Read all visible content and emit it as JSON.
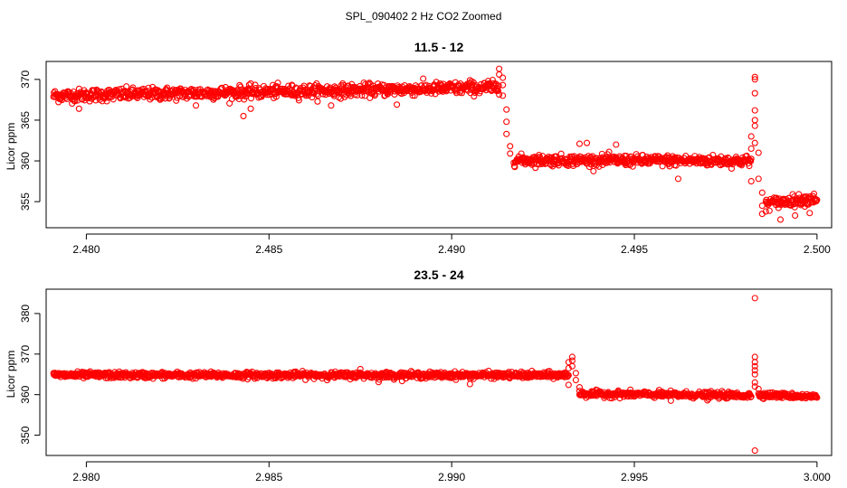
{
  "figure_title": "SPL_090402  2 Hz CO2 Zoomed",
  "colors": {
    "points": "#ff0000",
    "axes": "#000000"
  },
  "chart_data": [
    {
      "type": "scatter",
      "title": "11.5 - 12",
      "xlabel": "",
      "ylabel": "Licor ppm",
      "xlim": [
        2.4789,
        2.5004
      ],
      "ylim": [
        351.8,
        372.2
      ],
      "xticks": [
        2.48,
        2.485,
        2.49,
        2.495,
        2.5
      ],
      "xtick_labels": [
        "2.480",
        "2.485",
        "2.490",
        "2.495",
        "2.500"
      ],
      "yticks": [
        355,
        360,
        365,
        370
      ],
      "ytick_labels": [
        "355",
        "360",
        "365",
        "370"
      ],
      "grid": false,
      "series": [
        {
          "marker": "open-circle",
          "color": "#ff0000",
          "segments": [
            {
              "x_start": 2.4791,
              "x_end": 2.4913,
              "y_start": 368.0,
              "y_end": 369.0,
              "spread": 0.7
            },
            {
              "x_start": 2.4917,
              "x_end": 2.4982,
              "y_start": 360.1,
              "y_end": 360.0,
              "spread": 0.6
            },
            {
              "x_start": 2.4986,
              "x_end": 2.5,
              "y_start": 354.8,
              "y_end": 355.4,
              "spread": 0.6
            }
          ],
          "points": [
            [
              2.4913,
              370.6
            ],
            [
              2.4913,
              371.3
            ],
            [
              2.4914,
              370.2
            ],
            [
              2.4914,
              369.3
            ],
            [
              2.4914,
              368.0
            ],
            [
              2.4915,
              366.3
            ],
            [
              2.4915,
              364.8
            ],
            [
              2.4915,
              363.3
            ],
            [
              2.4916,
              361.8
            ],
            [
              2.4916,
              360.9
            ],
            [
              2.4843,
              365.5
            ],
            [
              2.4845,
              366.4
            ],
            [
              2.4798,
              366.4
            ],
            [
              2.483,
              366.8
            ],
            [
              2.4867,
              366.8
            ],
            [
              2.4885,
              366.9
            ],
            [
              2.491,
              369.8
            ],
            [
              2.4905,
              369.9
            ],
            [
              2.4935,
              362.1
            ],
            [
              2.4937,
              362.2
            ],
            [
              2.4945,
              362.0
            ],
            [
              2.4962,
              357.8
            ],
            [
              2.4982,
              361.5
            ],
            [
              2.4982,
              363.0
            ],
            [
              2.4983,
              364.3
            ],
            [
              2.4983,
              365.0
            ],
            [
              2.4983,
              366.2
            ],
            [
              2.4983,
              368.3
            ],
            [
              2.4983,
              370.0
            ],
            [
              2.4983,
              370.3
            ],
            [
              2.4983,
              362.2
            ],
            [
              2.4984,
              361.0
            ],
            [
              2.4982,
              357.5
            ],
            [
              2.4984,
              357.8
            ],
            [
              2.4985,
              356.1
            ],
            [
              2.4985,
              354.5
            ],
            [
              2.4985,
              353.5
            ],
            [
              2.4986,
              353.8
            ],
            [
              2.499,
              352.8
            ],
            [
              2.4994,
              353.3
            ],
            [
              2.4998,
              353.6
            ]
          ]
        }
      ]
    },
    {
      "type": "scatter",
      "title": "23.5 - 24",
      "xlabel": "",
      "ylabel": "Licor ppm",
      "xlim": [
        2.9789,
        3.0004
      ],
      "ylim": [
        345.0,
        386.0
      ],
      "xticks": [
        2.98,
        2.985,
        2.99,
        2.995,
        3.0
      ],
      "xtick_labels": [
        "2.980",
        "2.985",
        "2.990",
        "2.995",
        "3.000"
      ],
      "yticks": [
        350,
        360,
        370,
        380
      ],
      "ytick_labels": [
        "350",
        "360",
        "370",
        "380"
      ],
      "grid": false,
      "series": [
        {
          "marker": "open-circle",
          "color": "#ff0000",
          "segments": [
            {
              "x_start": 2.9791,
              "x_end": 2.9932,
              "y_start": 364.8,
              "y_end": 364.8,
              "spread": 0.7
            },
            {
              "x_start": 2.9935,
              "x_end": 2.9982,
              "y_start": 360.2,
              "y_end": 359.8,
              "spread": 0.7
            },
            {
              "x_start": 2.9984,
              "x_end": 3.0,
              "y_start": 360.0,
              "y_end": 359.5,
              "spread": 0.6
            }
          ],
          "points": [
            [
              2.9932,
              366.5
            ],
            [
              2.9932,
              368.0
            ],
            [
              2.9933,
              369.3
            ],
            [
              2.9933,
              368.4
            ],
            [
              2.9933,
              367.0
            ],
            [
              2.9934,
              365.3
            ],
            [
              2.9934,
              363.6
            ],
            [
              2.9935,
              361.8
            ],
            [
              2.9935,
              360.9
            ],
            [
              2.9932,
              362.4
            ],
            [
              2.9983,
              383.8
            ],
            [
              2.9983,
              346.2
            ],
            [
              2.9983,
              369.3
            ],
            [
              2.9983,
              368.0
            ],
            [
              2.9983,
              367.0
            ],
            [
              2.9983,
              366.0
            ],
            [
              2.9983,
              365.0
            ],
            [
              2.9983,
              363.0
            ],
            [
              2.9983,
              362.0
            ],
            [
              2.9984,
              361.4
            ],
            [
              2.9905,
              362.6
            ],
            [
              2.988,
              363.1
            ],
            [
              2.996,
              358.5
            ],
            [
              2.997,
              358.6
            ],
            [
              2.9875,
              366.3
            ]
          ]
        }
      ]
    }
  ]
}
